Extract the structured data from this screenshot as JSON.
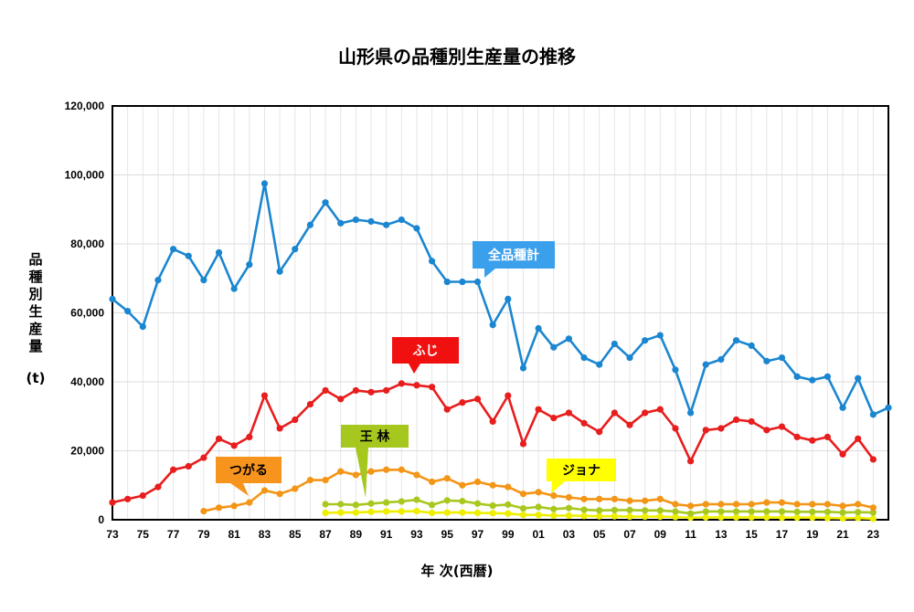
{
  "chart_data": {
    "type": "line",
    "title": "山形県の品種別生産量の推移",
    "ylabel": "品種別生産量",
    "yunit": "(t)",
    "xlabel": "年 次(西暦)",
    "ylim": [
      0,
      120000
    ],
    "yticks": [
      "0",
      "20,000",
      "40,000",
      "60,000",
      "80,000",
      "100,000",
      "120,000"
    ],
    "xlim": [
      1973,
      2024
    ],
    "xticks": [
      "73",
      "75",
      "77",
      "79",
      "81",
      "83",
      "85",
      "87",
      "89",
      "91",
      "93",
      "95",
      "97",
      "99",
      "01",
      "03",
      "05",
      "07",
      "09",
      "11",
      "13",
      "15",
      "17",
      "19",
      "21",
      "23"
    ],
    "grid": true,
    "series": [
      {
        "name": "全品種計",
        "color": "#1b86d0",
        "label_bg": "#3aa0ec",
        "x": [
          1973,
          1974,
          1975,
          1976,
          1977,
          1978,
          1979,
          1980,
          1981,
          1982,
          1983,
          1984,
          1985,
          1986,
          1987,
          1988,
          1989,
          1990,
          1991,
          1992,
          1993,
          1994,
          1995,
          1996,
          1997,
          1998,
          1999,
          2000,
          2001,
          2002,
          2003,
          2004,
          2005,
          2006,
          2007,
          2008,
          2009,
          2010,
          2011,
          2012,
          2013,
          2014,
          2015,
          2016,
          2017,
          2018,
          2019,
          2020,
          2021,
          2022,
          2023,
          2024
        ],
        "values": [
          64000,
          60500,
          56000,
          69500,
          78500,
          76500,
          69500,
          77500,
          67000,
          74000,
          97500,
          72000,
          78500,
          85500,
          92000,
          86000,
          87000,
          86500,
          85500,
          87000,
          84500,
          75000,
          69000,
          69000,
          69000,
          56500,
          64000,
          44000,
          55500,
          50000,
          52500,
          47000,
          45000,
          51000,
          47000,
          52000,
          53500,
          43500,
          31000,
          45000,
          46500,
          52000,
          50500,
          46000,
          47000,
          41500,
          40500,
          41500,
          32500,
          41000,
          30500,
          32500
        ]
      },
      {
        "name": "ふじ",
        "color": "#e81d1d",
        "label_bg": "#f01010",
        "x": [
          1973,
          1974,
          1975,
          1976,
          1977,
          1978,
          1979,
          1980,
          1981,
          1982,
          1983,
          1984,
          1985,
          1986,
          1987,
          1988,
          1989,
          1990,
          1991,
          1992,
          1993,
          1994,
          1995,
          1996,
          1997,
          1998,
          1999,
          2000,
          2001,
          2002,
          2003,
          2004,
          2005,
          2006,
          2007,
          2008,
          2009,
          2010,
          2011,
          2012,
          2013,
          2014,
          2015,
          2016,
          2017,
          2018,
          2019,
          2020,
          2021,
          2022,
          2023
        ],
        "values": [
          5000,
          6000,
          7000,
          9500,
          14500,
          15500,
          18000,
          23500,
          21500,
          24000,
          36000,
          26500,
          29000,
          33500,
          37500,
          35000,
          37500,
          37000,
          37500,
          39500,
          39000,
          38500,
          32000,
          34000,
          35000,
          28500,
          36000,
          22000,
          32000,
          29500,
          31000,
          28000,
          25500,
          31000,
          27500,
          31000,
          32000,
          26500,
          17000,
          26000,
          26500,
          29000,
          28500,
          26000,
          27000,
          24000,
          23000,
          24000,
          19000,
          23500,
          17500
        ]
      },
      {
        "name": "つがる",
        "color": "#f39516",
        "label_bg": "#f7941d",
        "x": [
          1979,
          1980,
          1981,
          1982,
          1983,
          1984,
          1985,
          1986,
          1987,
          1988,
          1989,
          1990,
          1991,
          1992,
          1993,
          1994,
          1995,
          1996,
          1997,
          1998,
          1999,
          2000,
          2001,
          2002,
          2003,
          2004,
          2005,
          2006,
          2007,
          2008,
          2009,
          2010,
          2011,
          2012,
          2013,
          2014,
          2015,
          2016,
          2017,
          2018,
          2019,
          2020,
          2021,
          2022,
          2023
        ],
        "values": [
          2500,
          3500,
          4000,
          5000,
          8500,
          7500,
          9000,
          11500,
          11500,
          14000,
          13000,
          14000,
          14500,
          14500,
          13000,
          11000,
          12000,
          10000,
          11000,
          10000,
          9500,
          7500,
          8000,
          7000,
          6500,
          6000,
          6000,
          6000,
          5500,
          5500,
          6000,
          4500,
          4000,
          4500,
          4500,
          4500,
          4500,
          5000,
          5000,
          4500,
          4500,
          4500,
          4000,
          4500,
          3500
        ]
      },
      {
        "name": "王 林",
        "color": "#a8c81f",
        "label_bg": "#a6c81e",
        "x": [
          1987,
          1988,
          1989,
          1990,
          1991,
          1992,
          1993,
          1994,
          1995,
          1996,
          1997,
          1998,
          1999,
          2000,
          2001,
          2002,
          2003,
          2004,
          2005,
          2006,
          2007,
          2008,
          2009,
          2010,
          2011,
          2012,
          2013,
          2014,
          2015,
          2016,
          2017,
          2018,
          2019,
          2020,
          2021,
          2022,
          2023
        ],
        "values": [
          4500,
          4500,
          4300,
          4700,
          5000,
          5300,
          5800,
          4300,
          5600,
          5400,
          4700,
          4100,
          4400,
          3300,
          3700,
          3100,
          3400,
          2900,
          2700,
          2800,
          2800,
          2700,
          2700,
          2400,
          1800,
          2400,
          2400,
          2400,
          2400,
          2400,
          2400,
          2300,
          2300,
          2300,
          2100,
          2200,
          2100
        ]
      },
      {
        "name": "ジョナ",
        "color": "#eeee00",
        "label_bg": "#ffff00",
        "x": [
          1987,
          1988,
          1989,
          1990,
          1991,
          1992,
          1993,
          1994,
          1995,
          1996,
          1997,
          1998,
          1999,
          2000,
          2001,
          2002,
          2003,
          2004,
          2005,
          2006,
          2007,
          2008,
          2009,
          2010,
          2011,
          2012,
          2013,
          2014,
          2015,
          2016,
          2017,
          2018,
          2019,
          2020,
          2021,
          2022,
          2023
        ],
        "values": [
          2000,
          2100,
          2100,
          2300,
          2400,
          2400,
          2500,
          2000,
          2100,
          2100,
          2000,
          1900,
          1800,
          1400,
          1400,
          1200,
          1200,
          1100,
          1000,
          1000,
          900,
          900,
          900,
          800,
          600,
          700,
          700,
          700,
          700,
          700,
          600,
          600,
          600,
          500,
          400,
          500,
          300
        ]
      }
    ]
  }
}
